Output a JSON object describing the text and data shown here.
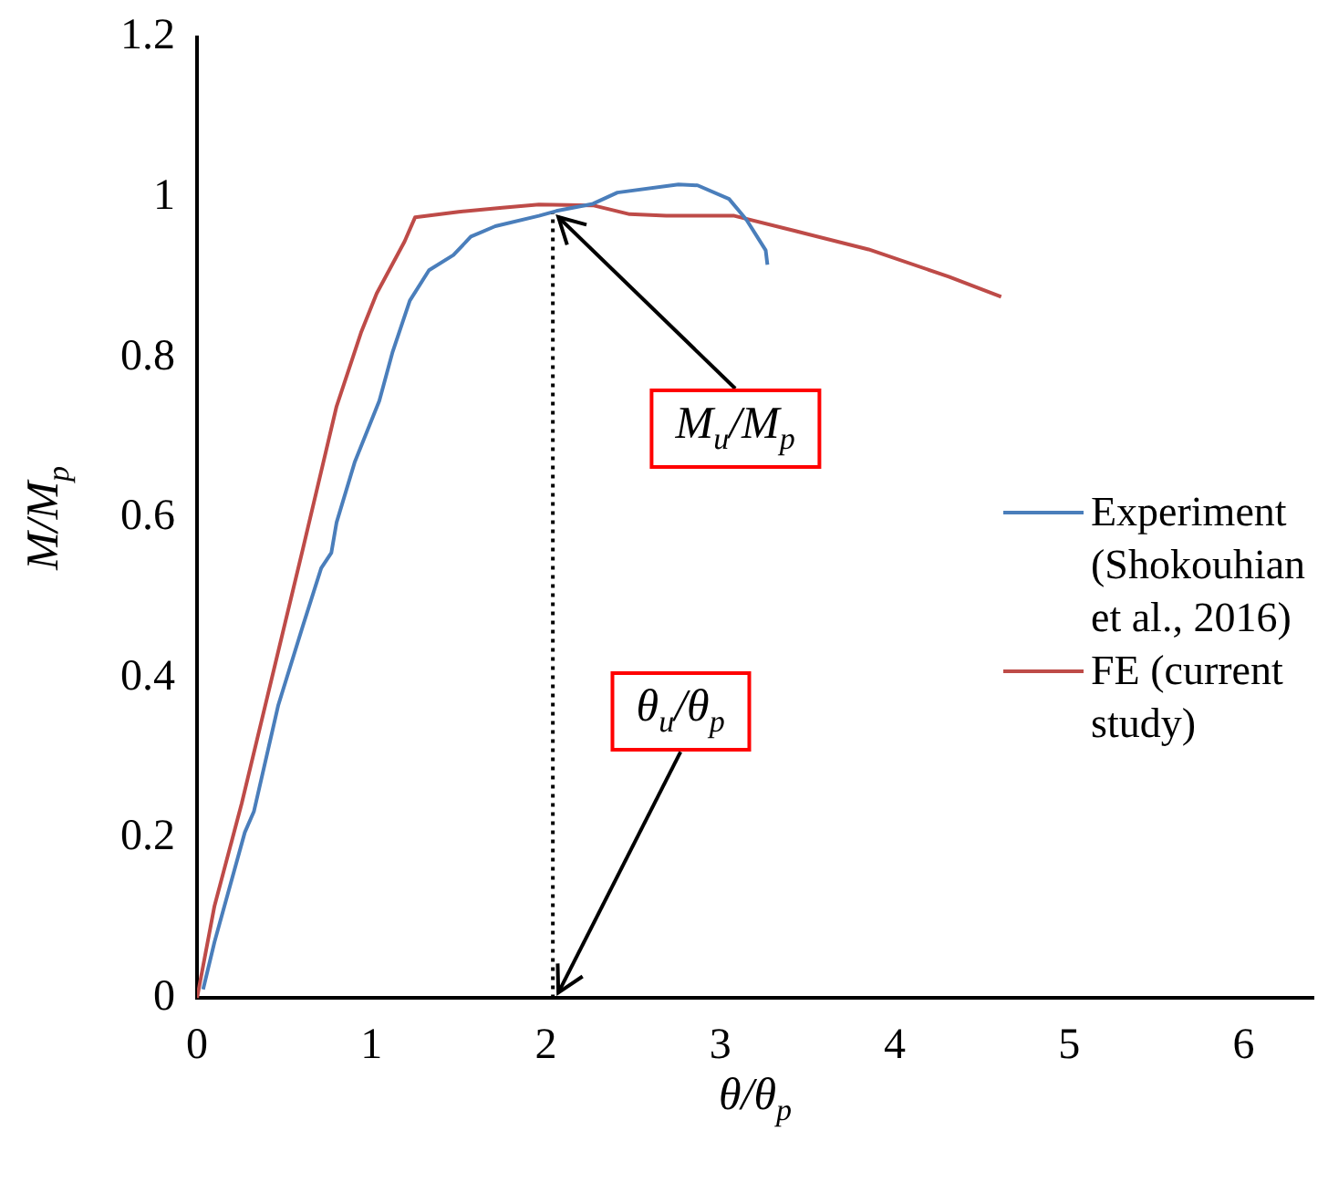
{
  "chart_data": {
    "type": "line",
    "xlabel": "θ/θ$_{p}$",
    "ylabel": "M/M$_{p}$",
    "xlim": [
      0,
      6.4
    ],
    "xticks": [
      0,
      1,
      2,
      3,
      4,
      5,
      6
    ],
    "ylim": [
      0,
      1.2
    ],
    "yticks": [
      0,
      0.2,
      0.4,
      0.6,
      0.8,
      1,
      1.2
    ],
    "grid": false,
    "legend": "right",
    "marker": "none",
    "line_style": "solid",
    "series": [
      {
        "name": "Experiment (Shokouhian et al., 2016)",
        "color": "#4a7ebb",
        "x": [
          0.035,
          0.1,
          0.274,
          0.326,
          0.466,
          0.607,
          0.712,
          0.77,
          0.8,
          0.905,
          1.045,
          1.12,
          1.22,
          1.33,
          1.47,
          1.57,
          1.71,
          1.96,
          2.06,
          2.27,
          2.41,
          2.76,
          2.87,
          3.05,
          3.15,
          3.26,
          3.27
        ],
        "values": [
          0.011,
          0.07,
          0.207,
          0.233,
          0.366,
          0.465,
          0.537,
          0.556,
          0.594,
          0.67,
          0.746,
          0.806,
          0.871,
          0.909,
          0.928,
          0.951,
          0.964,
          0.977,
          0.983,
          0.992,
          1.006,
          1.016,
          1.015,
          0.998,
          0.972,
          0.934,
          0.916
        ]
      },
      {
        "name": "FE (current study)",
        "color": "#be4b48",
        "x": [
          0,
          0.1,
          0.256,
          0.607,
          0.8,
          0.94,
          1.03,
          1.19,
          1.25,
          1.5,
          1.75,
          1.96,
          2.27,
          2.48,
          2.69,
          3.08,
          3.43,
          3.85,
          4.31,
          4.61
        ],
        "values": [
          0,
          0.115,
          0.243,
          0.561,
          0.739,
          0.831,
          0.88,
          0.945,
          0.975,
          0.982,
          0.987,
          0.991,
          0.99,
          0.979,
          0.977,
          0.977,
          0.958,
          0.935,
          0.901,
          0.876
        ]
      }
    ],
    "ref_lines": [
      {
        "axis": "x",
        "value": 2.04,
        "line_style": "dotted",
        "color": "#000000"
      }
    ],
    "annotations": [
      {
        "text": "M$_{u}$/M$_{p}$",
        "x": 2.04,
        "y": 0.98
      },
      {
        "text": "θ$_{u}$/θ$_{p}$",
        "x": 2.04,
        "y": 0
      }
    ]
  }
}
